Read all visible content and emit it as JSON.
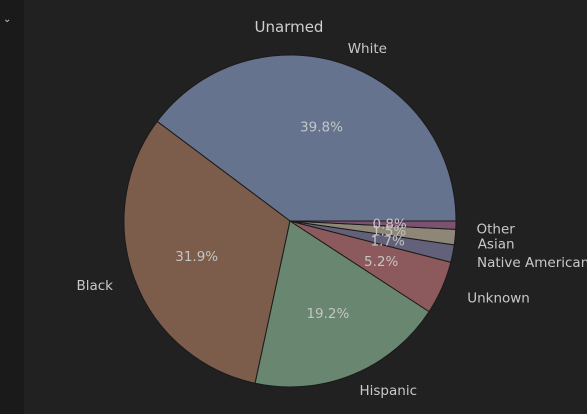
{
  "chart_data": {
    "type": "pie",
    "title": "Unarmed",
    "slices": [
      {
        "label": "White",
        "value": 39.8,
        "value_label": "39.8%",
        "color": "#66738f"
      },
      {
        "label": "Black",
        "value": 31.9,
        "value_label": "31.9%",
        "color": "#7c5d4c"
      },
      {
        "label": "Hispanic",
        "value": 19.2,
        "value_label": "19.2%",
        "color": "#698670"
      },
      {
        "label": "Unknown",
        "value": 5.2,
        "value_label": "5.2%",
        "color": "#8c5a5c"
      },
      {
        "label": "Native American",
        "value": 1.7,
        "value_label": "1.7%",
        "color": "#636179"
      },
      {
        "label": "Asian",
        "value": 1.5,
        "value_label": "1.5%",
        "color": "#8e8677"
      },
      {
        "label": "Other",
        "value": 0.8,
        "value_label": "0.8%",
        "color": "#7c5270"
      }
    ],
    "start_angle": "3 o'clock",
    "direction": "counterclockwise",
    "edge_color": "#1a1a1a"
  },
  "ui": {
    "collapse_icon": "chevron-down-icon",
    "chevron_glyph": "⌄",
    "background": "#212121"
  }
}
